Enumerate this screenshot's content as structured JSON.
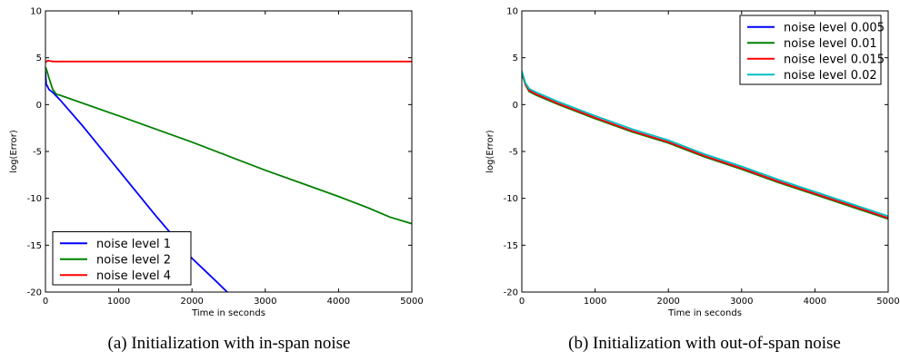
{
  "figures": [
    {
      "caption": "(a) Initialization with in-span noise"
    },
    {
      "caption": "(b) Initialization with out-of-span noise"
    }
  ],
  "chart_data": [
    {
      "type": "line",
      "xlabel": "Time in seconds",
      "ylabel": "log(Error)",
      "xlim": [
        0,
        5000
      ],
      "ylim": [
        -20,
        10
      ],
      "xticks": [
        0,
        1000,
        2000,
        3000,
        4000,
        5000
      ],
      "yticks": [
        -20,
        -15,
        -10,
        -5,
        0,
        5,
        10
      ],
      "grid": false,
      "legend_position": "lower-left",
      "series": [
        {
          "name": "noise level 1",
          "color": "#0000ff",
          "points": [
            [
              0,
              3.5
            ],
            [
              10,
              2.2
            ],
            [
              50,
              1.6
            ],
            [
              100,
              1.3
            ],
            [
              200,
              0.5
            ],
            [
              500,
              -2.2
            ],
            [
              1000,
              -7.0
            ],
            [
              1500,
              -11.8
            ],
            [
              2000,
              -16.4
            ],
            [
              2350,
              -19.0
            ],
            [
              2480,
              -20.0
            ]
          ]
        },
        {
          "name": "noise level 2",
          "color": "#008000",
          "points": [
            [
              0,
              4.0
            ],
            [
              20,
              3.6
            ],
            [
              50,
              2.8
            ],
            [
              100,
              1.6
            ],
            [
              150,
              1.1
            ],
            [
              200,
              1.0
            ],
            [
              1000,
              -1.2
            ],
            [
              2000,
              -4.0
            ],
            [
              2500,
              -5.5
            ],
            [
              3000,
              -7.0
            ],
            [
              3500,
              -8.4
            ],
            [
              4000,
              -9.8
            ],
            [
              4400,
              -11.0
            ],
            [
              4700,
              -12.0
            ],
            [
              5000,
              -12.7
            ]
          ]
        },
        {
          "name": "noise level 4",
          "color": "#ff0000",
          "points": [
            [
              0,
              4.5
            ],
            [
              30,
              4.7
            ],
            [
              100,
              4.6
            ],
            [
              5000,
              4.6
            ]
          ]
        }
      ]
    },
    {
      "type": "line",
      "xlabel": "Time in seconds",
      "ylabel": "log(Error)",
      "xlim": [
        0,
        5000
      ],
      "ylim": [
        -20,
        10
      ],
      "xticks": [
        0,
        1000,
        2000,
        3000,
        4000,
        5000
      ],
      "yticks": [
        -20,
        -15,
        -10,
        -5,
        0,
        5,
        10
      ],
      "grid": false,
      "legend_position": "top-right",
      "series": [
        {
          "name": "noise level 0.005",
          "color": "#0000ff",
          "points": [
            [
              0,
              3.4
            ],
            [
              50,
              2.2
            ],
            [
              100,
              1.5
            ],
            [
              200,
              1.1
            ],
            [
              500,
              0.1
            ],
            [
              1000,
              -1.4
            ],
            [
              1500,
              -2.8
            ],
            [
              2000,
              -4.0
            ],
            [
              2500,
              -5.5
            ],
            [
              3000,
              -6.8
            ],
            [
              3500,
              -8.2
            ],
            [
              4000,
              -9.5
            ],
            [
              4500,
              -10.8
            ],
            [
              5000,
              -12.1
            ]
          ]
        },
        {
          "name": "noise level 0.01",
          "color": "#008000",
          "points": [
            [
              0,
              3.4
            ],
            [
              50,
              2.1
            ],
            [
              100,
              1.4
            ],
            [
              200,
              1.0
            ],
            [
              500,
              0.0
            ],
            [
              1000,
              -1.5
            ],
            [
              1500,
              -2.9
            ],
            [
              2000,
              -4.1
            ],
            [
              2500,
              -5.6
            ],
            [
              3000,
              -6.9
            ],
            [
              3500,
              -8.3
            ],
            [
              4000,
              -9.6
            ],
            [
              4500,
              -10.9
            ],
            [
              5000,
              -12.2
            ]
          ]
        },
        {
          "name": "noise level 0.015",
          "color": "#ff0000",
          "points": [
            [
              0,
              3.5
            ],
            [
              50,
              2.2
            ],
            [
              100,
              1.5
            ],
            [
              200,
              1.1
            ],
            [
              500,
              0.1
            ],
            [
              1000,
              -1.4
            ],
            [
              1500,
              -2.8
            ],
            [
              2000,
              -4.0
            ],
            [
              2500,
              -5.5
            ],
            [
              3000,
              -6.8
            ],
            [
              3500,
              -8.2
            ],
            [
              4000,
              -9.5
            ],
            [
              4500,
              -10.8
            ],
            [
              5000,
              -12.1
            ]
          ]
        },
        {
          "name": "noise level 0.02",
          "color": "#00bfbf",
          "points": [
            [
              0,
              3.6
            ],
            [
              50,
              2.3
            ],
            [
              100,
              1.7
            ],
            [
              200,
              1.3
            ],
            [
              500,
              0.3
            ],
            [
              1000,
              -1.2
            ],
            [
              1500,
              -2.6
            ],
            [
              2000,
              -3.8
            ],
            [
              2500,
              -5.3
            ],
            [
              3000,
              -6.6
            ],
            [
              3500,
              -8.0
            ],
            [
              4000,
              -9.3
            ],
            [
              4500,
              -10.6
            ],
            [
              5000,
              -11.9
            ]
          ]
        }
      ]
    }
  ]
}
